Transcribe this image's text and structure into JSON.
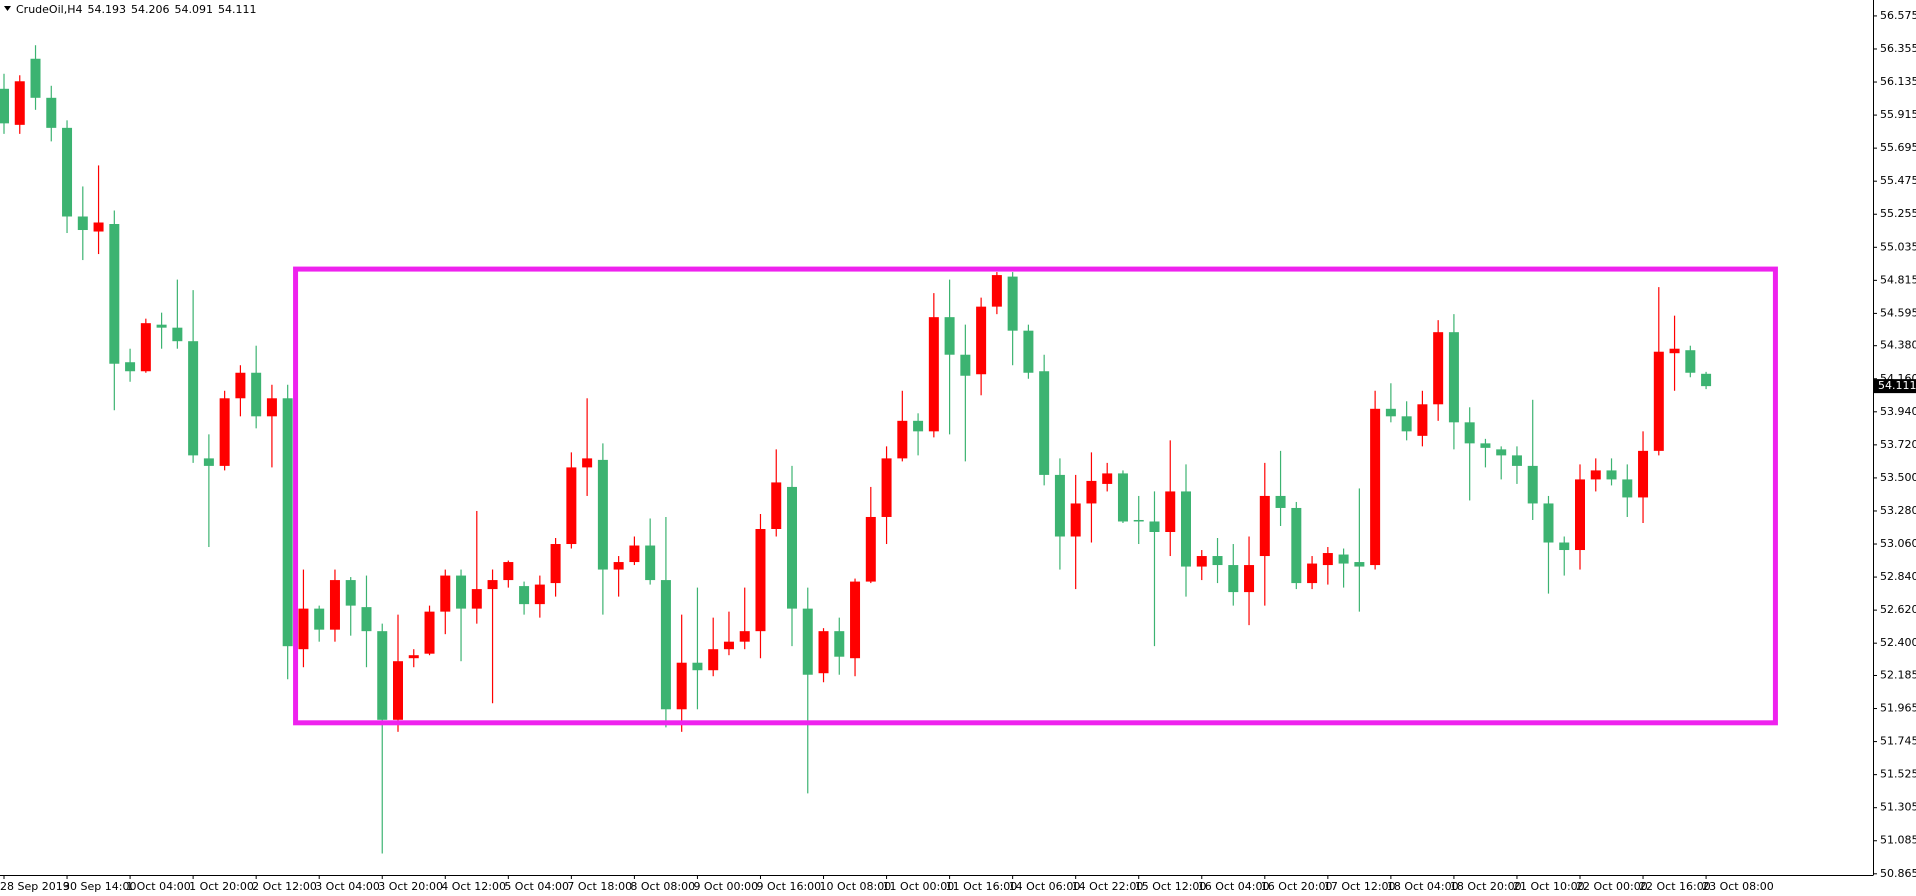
{
  "chart_data": {
    "type": "candlestick",
    "title": "CrudeOil,H4",
    "up_color": "#ff0000",
    "down_color": "#3cb371",
    "categories": [
      "28 Sep 2019",
      null,
      null,
      null,
      "30 Sep 14:00",
      null,
      null,
      null,
      "1 Oct 04:00",
      null,
      null,
      null,
      "1 Oct 20:00",
      null,
      null,
      null,
      "2 Oct 12:00",
      null,
      null,
      null,
      "3 Oct 04:00",
      null,
      null,
      null,
      "3 Oct 20:00",
      null,
      null,
      null,
      "4 Oct 12:00",
      null,
      null,
      null,
      "5 Oct 04:00",
      null,
      null,
      null,
      "7 Oct 18:00",
      null,
      null,
      null,
      "8 Oct 08:00",
      null,
      null,
      null,
      "9 Oct 00:00",
      null,
      null,
      null,
      "9 Oct 16:00",
      null,
      null,
      null,
      "10 Oct 08:00",
      null,
      null,
      null,
      "11 Oct 00:00",
      null,
      null,
      null,
      "11 Oct 16:00",
      null,
      null,
      null,
      "14 Oct 06:00",
      null,
      null,
      null,
      "14 Oct 22:00",
      null,
      null,
      null,
      "15 Oct 12:00",
      null,
      null,
      null,
      "16 Oct 04:00",
      null,
      null,
      null,
      "16 Oct 20:00",
      null,
      null,
      null,
      "17 Oct 12:00",
      null,
      null,
      null,
      "18 Oct 04:00",
      null,
      null,
      null,
      "18 Oct 20:00",
      null,
      null,
      null,
      "21 Oct 10:00",
      null,
      null,
      null,
      "22 Oct 00:00",
      null,
      null,
      null,
      "22 Oct 16:00",
      null,
      null,
      null,
      "23 Oct 08:00"
    ],
    "open": [
      56.09,
      55.85,
      56.29,
      56.03,
      55.83,
      55.24,
      55.14,
      55.19,
      54.27,
      54.21,
      54.52,
      54.5,
      54.41,
      53.63,
      53.58,
      54.03,
      54.2,
      53.91,
      54.03,
      52.36,
      52.63,
      52.49,
      52.82,
      52.64,
      52.48,
      51.89,
      52.3,
      52.33,
      52.61,
      52.85,
      52.63,
      52.76,
      52.82,
      52.78,
      52.66,
      52.8,
      53.06,
      53.57,
      53.62,
      52.89,
      52.94,
      53.05,
      52.82,
      51.96,
      52.27,
      52.22,
      52.36,
      52.41,
      52.48,
      53.16,
      53.44,
      52.63,
      52.2,
      52.48,
      52.3,
      52.81,
      53.24,
      53.63,
      53.88,
      53.81,
      54.57,
      54.32,
      54.19,
      54.64,
      54.84,
      54.48,
      54.21,
      53.52,
      53.11,
      53.33,
      53.46,
      53.53,
      53.22,
      53.21,
      53.14,
      53.41,
      52.91,
      52.98,
      52.92,
      52.74,
      52.98,
      53.38,
      53.3,
      52.8,
      52.92,
      52.99,
      52.94,
      52.92,
      53.96,
      53.91,
      53.78,
      53.99,
      54.47,
      53.87,
      53.73,
      53.69,
      53.65,
      53.58,
      53.33,
      53.07,
      53.02,
      53.49,
      53.55,
      53.49,
      53.37,
      53.68,
      54.33,
      54.35,
      54.193
    ],
    "high": [
      56.19,
      56.18,
      56.38,
      56.11,
      55.88,
      55.44,
      55.58,
      55.28,
      54.36,
      54.56,
      54.6,
      54.82,
      54.75,
      53.79,
      54.08,
      54.25,
      54.38,
      54.12,
      54.12,
      52.89,
      52.65,
      52.89,
      52.84,
      52.85,
      52.53,
      52.59,
      52.36,
      52.65,
      52.89,
      52.89,
      53.28,
      52.89,
      52.95,
      52.81,
      52.85,
      53.1,
      53.67,
      54.03,
      53.73,
      52.98,
      53.11,
      53.23,
      53.24,
      52.59,
      52.77,
      52.57,
      52.61,
      52.77,
      53.26,
      53.69,
      53.58,
      52.77,
      52.5,
      52.57,
      52.83,
      53.44,
      53.71,
      54.08,
      53.93,
      54.73,
      54.82,
      54.52,
      54.7,
      54.87,
      54.87,
      54.52,
      54.32,
      53.63,
      53.52,
      53.67,
      53.6,
      53.55,
      53.38,
      53.41,
      53.75,
      53.59,
      53.02,
      53.1,
      53.06,
      53.11,
      53.6,
      53.68,
      53.34,
      52.98,
      53.04,
      53.03,
      53.43,
      54.08,
      54.13,
      54.01,
      54.08,
      54.55,
      54.59,
      53.97,
      53.76,
      53.71,
      53.71,
      54.02,
      53.38,
      53.11,
      53.59,
      53.63,
      53.63,
      53.59,
      53.81,
      54.77,
      54.58,
      54.38,
      54.206
    ],
    "low": [
      55.79,
      55.79,
      55.95,
      55.74,
      55.13,
      54.95,
      54.99,
      53.95,
      54.14,
      54.2,
      54.36,
      54.36,
      53.6,
      53.04,
      53.55,
      53.91,
      53.83,
      53.57,
      52.16,
      52.24,
      52.41,
      52.41,
      52.45,
      52.24,
      51.0,
      51.81,
      52.24,
      52.32,
      52.46,
      52.28,
      52.53,
      52.0,
      52.77,
      52.59,
      52.57,
      52.71,
      53.03,
      53.38,
      52.59,
      52.71,
      52.92,
      52.79,
      51.84,
      51.81,
      51.96,
      52.18,
      52.32,
      52.36,
      52.3,
      53.11,
      52.38,
      51.4,
      52.14,
      52.19,
      52.18,
      52.8,
      53.06,
      53.61,
      53.65,
      53.77,
      53.79,
      53.61,
      54.05,
      54.59,
      54.25,
      54.16,
      53.45,
      52.89,
      52.76,
      53.07,
      53.41,
      53.2,
      53.06,
      52.38,
      52.98,
      52.71,
      52.82,
      52.8,
      52.65,
      52.52,
      52.65,
      53.18,
      52.76,
      52.76,
      52.79,
      52.77,
      52.61,
      52.89,
      53.87,
      53.75,
      53.71,
      53.88,
      53.69,
      53.35,
      53.57,
      53.49,
      53.46,
      53.22,
      52.73,
      52.85,
      52.89,
      53.41,
      53.45,
      53.24,
      53.2,
      53.65,
      54.08,
      54.17,
      54.091
    ],
    "close": [
      55.86,
      56.14,
      56.03,
      55.83,
      55.24,
      55.15,
      55.2,
      54.26,
      54.21,
      54.53,
      54.5,
      54.41,
      53.65,
      53.58,
      54.03,
      54.2,
      53.91,
      54.03,
      52.38,
      52.63,
      52.49,
      52.82,
      52.65,
      52.48,
      51.89,
      52.28,
      52.32,
      52.61,
      52.85,
      52.63,
      52.76,
      52.82,
      52.94,
      52.66,
      52.79,
      53.06,
      53.57,
      53.63,
      52.89,
      52.94,
      53.05,
      52.82,
      51.96,
      52.27,
      52.22,
      52.36,
      52.41,
      52.48,
      53.16,
      53.47,
      52.63,
      52.19,
      52.48,
      52.31,
      52.81,
      53.24,
      53.63,
      53.88,
      53.81,
      54.57,
      54.32,
      54.18,
      54.64,
      54.85,
      54.48,
      54.2,
      53.52,
      53.11,
      53.33,
      53.48,
      53.53,
      53.21,
      53.21,
      53.14,
      53.41,
      52.91,
      52.98,
      52.92,
      52.74,
      52.92,
      53.38,
      53.3,
      52.8,
      52.93,
      53.0,
      52.93,
      52.91,
      53.96,
      53.91,
      53.81,
      53.99,
      54.47,
      53.87,
      53.73,
      53.7,
      53.65,
      53.58,
      53.33,
      53.07,
      53.02,
      53.49,
      53.55,
      53.49,
      53.37,
      53.68,
      54.34,
      54.36,
      54.2,
      54.111
    ],
    "ylim": [
      50.857,
      56.681
    ],
    "yticks": [
      {
        "value": 56.575,
        "label": "56.575"
      },
      {
        "value": 56.355,
        "label": "56.355"
      },
      {
        "value": 56.135,
        "label": "56.135"
      },
      {
        "value": 55.915,
        "label": "55.915"
      },
      {
        "value": 55.695,
        "label": "55.695"
      },
      {
        "value": 55.475,
        "label": "55.475"
      },
      {
        "value": 55.255,
        "label": "55.255"
      },
      {
        "value": 55.035,
        "label": "55.035"
      },
      {
        "value": 54.815,
        "label": "54.815"
      },
      {
        "value": 54.595,
        "label": "54.595"
      },
      {
        "value": 54.38,
        "label": "54.380"
      },
      {
        "value": 54.16,
        "label": "54.160"
      },
      {
        "value": 53.94,
        "label": "53.940"
      },
      {
        "value": 53.72,
        "label": "53.720"
      },
      {
        "value": 53.5,
        "label": "53.500"
      },
      {
        "value": 53.28,
        "label": "53.280"
      },
      {
        "value": 53.06,
        "label": "53.060"
      },
      {
        "value": 52.84,
        "label": "52.840"
      },
      {
        "value": 52.62,
        "label": "52.620"
      },
      {
        "value": 52.4,
        "label": "52.400"
      },
      {
        "value": 52.185,
        "label": "52.185"
      },
      {
        "value": 51.965,
        "label": "51.965"
      },
      {
        "value": 51.745,
        "label": "51.745"
      },
      {
        "value": 51.525,
        "label": "51.525"
      },
      {
        "value": 51.305,
        "label": "51.305"
      },
      {
        "value": 51.085,
        "label": "51.085"
      },
      {
        "value": 50.865,
        "label": "50.865"
      }
    ],
    "highlight": {
      "xlim": [
        18.5,
        112.4
      ],
      "ylim": [
        51.87,
        54.89
      ],
      "color": "#ee22ee"
    }
  }
}
